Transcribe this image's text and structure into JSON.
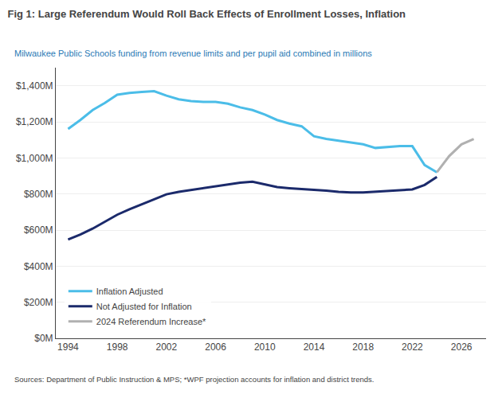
{
  "chart_data": {
    "type": "line",
    "title": "Fig 1: Large Referendum Would Roll Back Effects of Enrollment Losses, Inflation",
    "subtitle": "Milwaukee Public Schools funding from revenue limits and per pupil aid combined in millions",
    "annotations": [
      "Sources: Department of Public Instruction & MPS; *WPF projection accounts for inflation and district trends."
    ],
    "series": [
      {
        "name": "Inflation Adjusted",
        "color": "#4bbde8",
        "x": [
          1994,
          1995,
          1996,
          1997,
          1998,
          1999,
          2000,
          2001,
          2002,
          2003,
          2004,
          2005,
          2006,
          2007,
          2008,
          2009,
          2010,
          2011,
          2012,
          2013,
          2014,
          2015,
          2016,
          2017,
          2018,
          2019,
          2020,
          2021,
          2022,
          2023,
          2024
        ],
        "values": [
          1160,
          1210,
          1265,
          1305,
          1350,
          1360,
          1365,
          1370,
          1345,
          1325,
          1315,
          1310,
          1310,
          1300,
          1280,
          1265,
          1240,
          1210,
          1190,
          1175,
          1120,
          1105,
          1095,
          1085,
          1075,
          1055,
          1060,
          1065,
          1065,
          960,
          920
        ]
      },
      {
        "name": "Not Adjusted for Inflation",
        "color": "#1b2a6b",
        "x": [
          1994,
          1995,
          1996,
          1997,
          1998,
          1999,
          2000,
          2001,
          2002,
          2003,
          2004,
          2005,
          2006,
          2007,
          2008,
          2009,
          2010,
          2011,
          2012,
          2013,
          2014,
          2015,
          2016,
          2017,
          2018,
          2019,
          2020,
          2021,
          2022,
          2023,
          2024
        ],
        "values": [
          548,
          575,
          608,
          645,
          685,
          715,
          742,
          772,
          798,
          812,
          822,
          832,
          842,
          852,
          862,
          868,
          852,
          838,
          832,
          828,
          822,
          818,
          812,
          808,
          808,
          812,
          818,
          822,
          825,
          850,
          895
        ]
      },
      {
        "name": "2024 Referendum Increase*",
        "color": "#b0b0b0",
        "x": [
          2024,
          2025,
          2026,
          2027
        ],
        "values": [
          920,
          1010,
          1075,
          1105
        ]
      }
    ],
    "xlim": [
      1993,
      2028
    ],
    "xticks": [
      1994,
      1998,
      2002,
      2006,
      2010,
      2014,
      2018,
      2022,
      2026
    ],
    "ylim": [
      0,
      1500
    ],
    "yticks": [
      {
        "value": 0,
        "label": "$0M"
      },
      {
        "value": 200,
        "label": "$200M"
      },
      {
        "value": 400,
        "label": "$400M"
      },
      {
        "value": 600,
        "label": "$600M"
      },
      {
        "value": 800,
        "label": "$800M"
      },
      {
        "value": 1000,
        "label": "$1,000M"
      },
      {
        "value": 1200,
        "label": "$1,200M"
      },
      {
        "value": 1400,
        "label": "$1,400M"
      }
    ],
    "grid": true,
    "legend": "lower left"
  }
}
